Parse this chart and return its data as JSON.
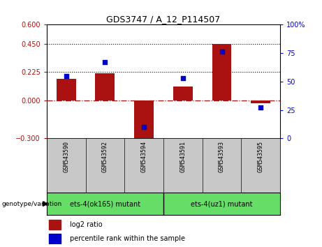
{
  "title": "GDS3747 / A_12_P114507",
  "samples": [
    "GSM543590",
    "GSM543592",
    "GSM543594",
    "GSM543591",
    "GSM543593",
    "GSM543595"
  ],
  "log2_ratio": [
    0.17,
    0.215,
    -0.325,
    0.11,
    0.445,
    -0.02
  ],
  "percentile_rank": [
    55,
    67,
    10,
    53,
    76,
    27
  ],
  "ylim_left": [
    -0.3,
    0.6
  ],
  "ylim_right": [
    0,
    100
  ],
  "yticks_left": [
    -0.3,
    0,
    0.225,
    0.45,
    0.6
  ],
  "yticks_right": [
    0,
    25,
    50,
    75,
    100
  ],
  "hlines": [
    0.225,
    0.45
  ],
  "group1_label": "ets-4(ok165) mutant",
  "group2_label": "ets-4(uz1) mutant",
  "group_color": "#66DD66",
  "bar_color": "#AA1111",
  "dot_color": "#0000CC",
  "zero_line_color": "#AA1111",
  "bg_color": "#FFFFFF",
  "plot_bg": "#FFFFFF",
  "sample_label_bg": "#C8C8C8",
  "legend_items": [
    {
      "label": "log2 ratio",
      "color": "#AA1111"
    },
    {
      "label": "percentile rank within the sample",
      "color": "#0000CC"
    }
  ],
  "genotype_label": "genotype/variation"
}
